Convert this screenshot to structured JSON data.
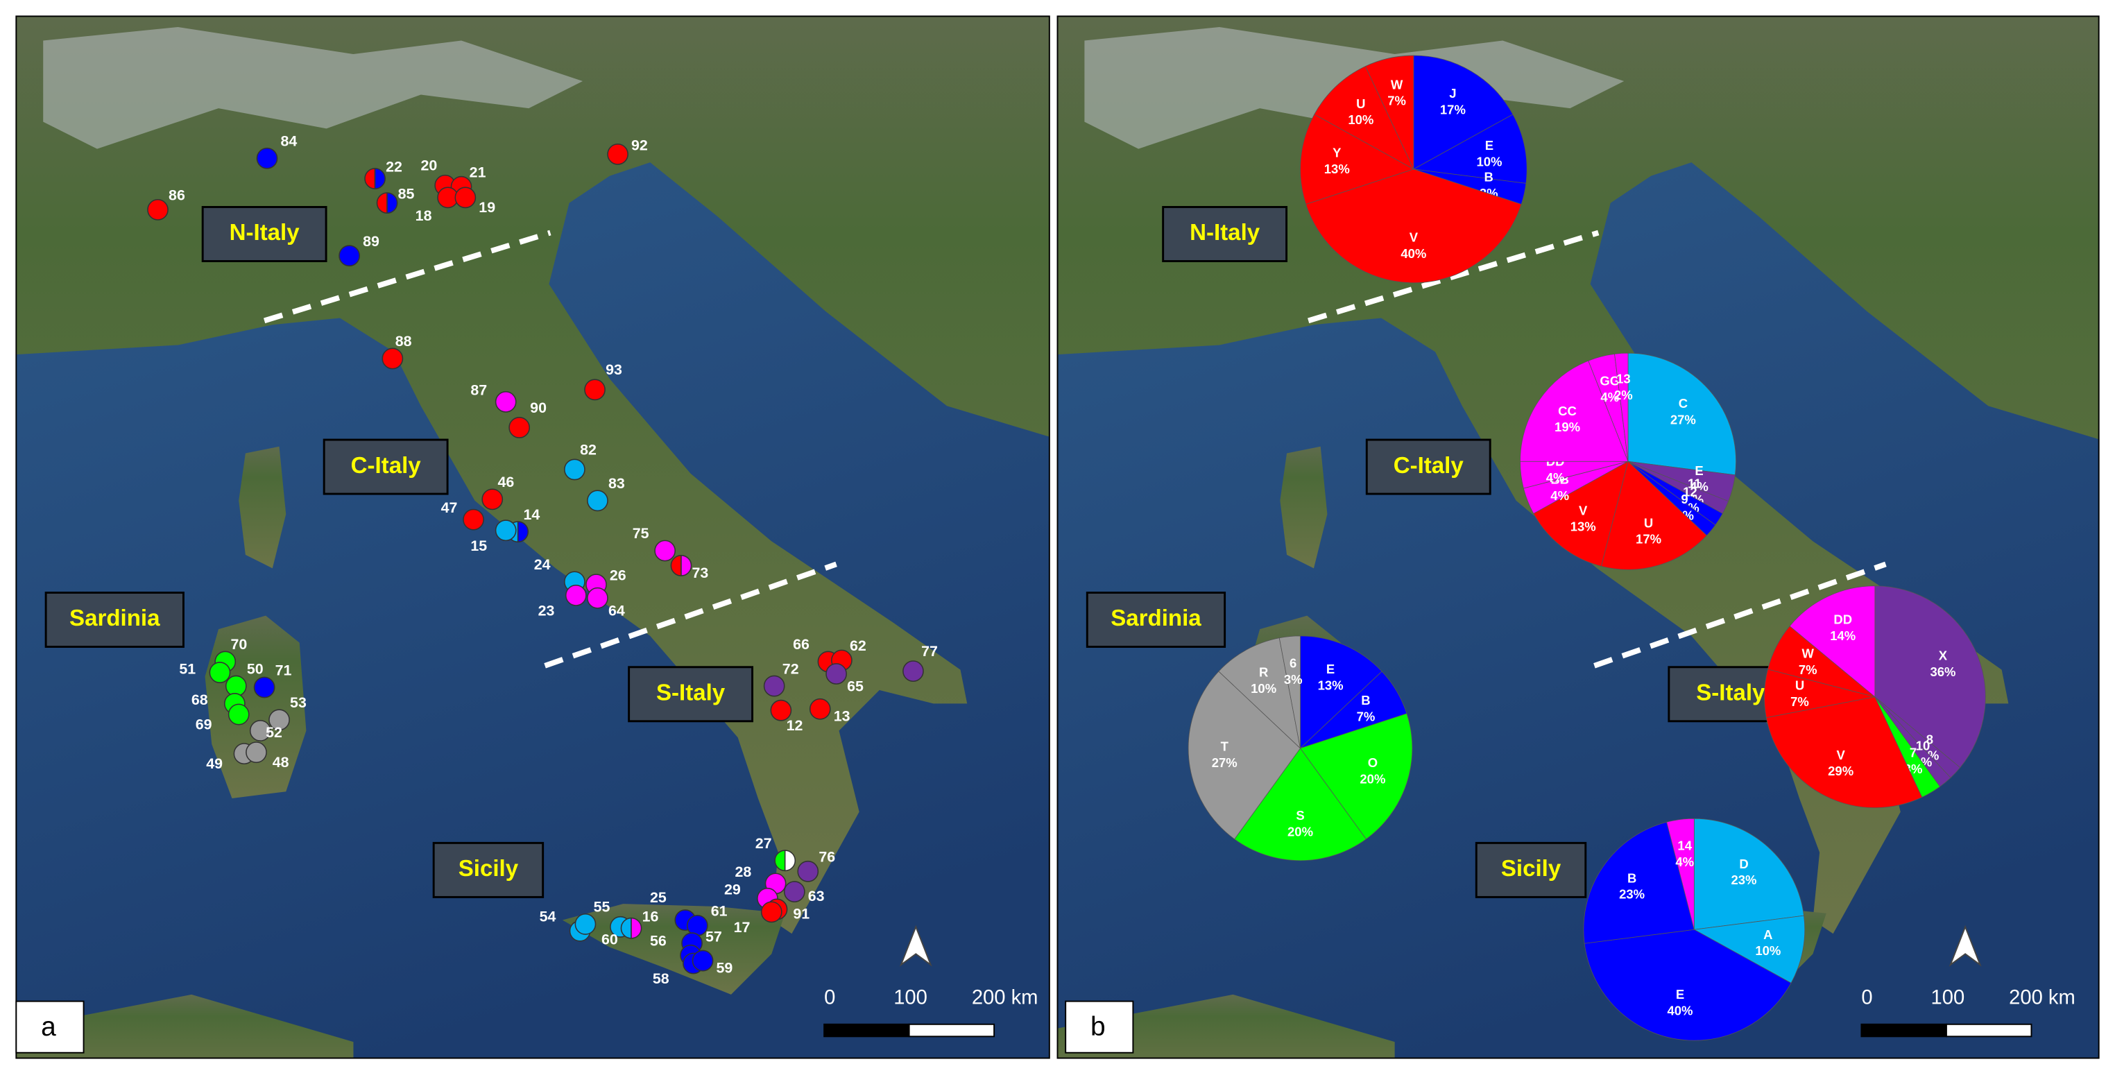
{
  "panel_a": {
    "letter": "a",
    "regions": [
      "N-Italy",
      "C-Italy",
      "Sardinia",
      "S-Italy",
      "Sicily"
    ],
    "scale": [
      "0",
      "100",
      "200 km"
    ],
    "sites": [
      {
        "id": "84",
        "color": "#0000ff"
      },
      {
        "id": "22",
        "color": [
          "#ff0000",
          "#0000ff"
        ]
      },
      {
        "id": "85",
        "color": [
          "#ff0000",
          "#0000ff"
        ]
      },
      {
        "id": "20",
        "color": "#ff0000"
      },
      {
        "id": "21",
        "color": "#ff0000"
      },
      {
        "id": "18",
        "color": "#ff0000"
      },
      {
        "id": "19",
        "color": "#ff0000"
      },
      {
        "id": "92",
        "color": "#ff0000"
      },
      {
        "id": "86",
        "color": "#ff0000"
      },
      {
        "id": "89",
        "color": "#0000ff"
      },
      {
        "id": "88",
        "color": "#ff0000"
      },
      {
        "id": "93",
        "color": "#ff0000"
      },
      {
        "id": "87",
        "color": "#ff00ff"
      },
      {
        "id": "90",
        "color": "#ff0000"
      },
      {
        "id": "82",
        "color": "#00b0f0"
      },
      {
        "id": "83",
        "color": "#00b0f0"
      },
      {
        "id": "46",
        "color": "#ff0000"
      },
      {
        "id": "47",
        "color": "#ff0000"
      },
      {
        "id": "14",
        "color": [
          "#00b0f0",
          "#0000ff"
        ]
      },
      {
        "id": "15",
        "color": "#00b0f0"
      },
      {
        "id": "75",
        "color": "#ff00ff"
      },
      {
        "id": "73",
        "color": [
          "#ff0000",
          "#ff00ff"
        ]
      },
      {
        "id": "24",
        "color": "#00b0f0"
      },
      {
        "id": "26",
        "color": "#ff00ff"
      },
      {
        "id": "23",
        "color": "#ff00ff"
      },
      {
        "id": "64",
        "color": "#ff00ff"
      },
      {
        "id": "70",
        "color": "#00ff00"
      },
      {
        "id": "51",
        "color": "#00ff00"
      },
      {
        "id": "50",
        "color": "#00ff00"
      },
      {
        "id": "71",
        "color": "#0000ff"
      },
      {
        "id": "68",
        "color": "#00ff00"
      },
      {
        "id": "69",
        "color": "#00ff00"
      },
      {
        "id": "53",
        "color": "#999999"
      },
      {
        "id": "52",
        "color": "#999999"
      },
      {
        "id": "49",
        "color": "#999999"
      },
      {
        "id": "48",
        "color": "#999999"
      },
      {
        "id": "66",
        "color": "#ff0000"
      },
      {
        "id": "62",
        "color": "#ff0000"
      },
      {
        "id": "65",
        "color": "#7030a0"
      },
      {
        "id": "77",
        "color": "#7030a0"
      },
      {
        "id": "72",
        "color": "#7030a0"
      },
      {
        "id": "12",
        "color": "#ff0000"
      },
      {
        "id": "13",
        "color": "#ff0000"
      },
      {
        "id": "27",
        "color": [
          "#00ff00",
          "#ffffff"
        ]
      },
      {
        "id": "76",
        "color": "#7030a0"
      },
      {
        "id": "28",
        "color": "#ff00ff"
      },
      {
        "id": "63",
        "color": "#7030a0"
      },
      {
        "id": "29",
        "color": "#ff00ff"
      },
      {
        "id": "91",
        "color": "#ff0000"
      },
      {
        "id": "17",
        "color": "#ff0000"
      },
      {
        "id": "25",
        "color": "#0000ff"
      },
      {
        "id": "61",
        "color": "#0000ff"
      },
      {
        "id": "57",
        "color": "#0000ff"
      },
      {
        "id": "56",
        "color": "#0000ff"
      },
      {
        "id": "58",
        "color": "#0000ff"
      },
      {
        "id": "59",
        "color": "#0000ff"
      },
      {
        "id": "54",
        "color": "#00b0f0"
      },
      {
        "id": "55",
        "color": "#00b0f0"
      },
      {
        "id": "60",
        "color": "#00b0f0"
      },
      {
        "id": "16",
        "color": [
          "#00b0f0",
          "#ff00ff"
        ]
      }
    ]
  },
  "panel_b": {
    "letter": "b",
    "scale": [
      "0",
      "100",
      "200 km"
    ],
    "pies": [
      {
        "region": "N-Italy",
        "slices": [
          {
            "label": "J",
            "value": 17,
            "value_label": "17%",
            "color": "#0000ff"
          },
          {
            "label": "E",
            "value": 10,
            "value_label": "10%",
            "color": "#0000ff"
          },
          {
            "label": "B",
            "value": 3,
            "value_label": "3%",
            "color": "#0000ff"
          },
          {
            "label": "V",
            "value": 40,
            "value_label": "40%",
            "color": "#ff0000"
          },
          {
            "label": "Y",
            "value": 13,
            "value_label": "13%",
            "color": "#ff0000"
          },
          {
            "label": "U",
            "value": 10,
            "value_label": "10%",
            "color": "#ff0000"
          },
          {
            "label": "W",
            "value": 7,
            "value_label": "7%",
            "color": "#ff0000"
          }
        ]
      },
      {
        "region": "C-Italy",
        "slices": [
          {
            "label": "C",
            "value": 27,
            "value_label": "27%",
            "color": "#00b0f0"
          },
          {
            "label": "E",
            "value": 4,
            "value_label": "4%",
            "color": "#7030a0"
          },
          {
            "label": "11",
            "value": 2,
            "value_label": "2%",
            "color": "#7030a0"
          },
          {
            "label": "12",
            "value": 2,
            "value_label": "2%",
            "color": "#0000ff"
          },
          {
            "label": "9",
            "value": 2,
            "value_label": "2%",
            "color": "#0000ff"
          },
          {
            "label": "U",
            "value": 17,
            "value_label": "17%",
            "color": "#ff0000"
          },
          {
            "label": "V",
            "value": 13,
            "value_label": "13%",
            "color": "#ff0000"
          },
          {
            "label": "BB",
            "value": 4,
            "value_label": "4%",
            "color": "#ff00ff"
          },
          {
            "label": "DD",
            "value": 4,
            "value_label": "4%",
            "color": "#ff00ff"
          },
          {
            "label": "CC",
            "value": 19,
            "value_label": "19%",
            "color": "#ff00ff"
          },
          {
            "label": "GG",
            "value": 4,
            "value_label": "4%",
            "color": "#ff00ff"
          },
          {
            "label": "13",
            "value": 2,
            "value_label": "2%",
            "color": "#ff00ff"
          }
        ]
      },
      {
        "region": "Sardinia",
        "slices": [
          {
            "label": "E",
            "value": 13,
            "value_label": "13%",
            "color": "#0000ff"
          },
          {
            "label": "B",
            "value": 7,
            "value_label": "7%",
            "color": "#0000ff"
          },
          {
            "label": "O",
            "value": 20,
            "value_label": "20%",
            "color": "#00ff00"
          },
          {
            "label": "S",
            "value": 20,
            "value_label": "20%",
            "color": "#00ff00"
          },
          {
            "label": "T",
            "value": 27,
            "value_label": "27%",
            "color": "#999999"
          },
          {
            "label": "R",
            "value": 10,
            "value_label": "10%",
            "color": "#999999"
          },
          {
            "label": "6",
            "value": 3,
            "value_label": "3%",
            "color": "#999999"
          }
        ]
      },
      {
        "region": "S-Italy",
        "slices": [
          {
            "label": "X",
            "value": 36,
            "value_label": "36%",
            "color": "#7030a0"
          },
          {
            "label": "8",
            "value": 2,
            "value_label": "2%",
            "color": "#7030a0"
          },
          {
            "label": "10",
            "value": 2,
            "value_label": "2%",
            "color": "#7030a0"
          },
          {
            "label": "7",
            "value": 3,
            "value_label": "3%",
            "color": "#00ff00"
          },
          {
            "label": "V",
            "value": 29,
            "value_label": "29%",
            "color": "#ff0000"
          },
          {
            "label": "U",
            "value": 7,
            "value_label": "7%",
            "color": "#ff0000"
          },
          {
            "label": "W",
            "value": 7,
            "value_label": "7%",
            "color": "#ff0000"
          },
          {
            "label": "DD",
            "value": 14,
            "value_label": "14%",
            "color": "#ff00ff"
          }
        ]
      },
      {
        "region": "Sicily",
        "slices": [
          {
            "label": "D",
            "value": 23,
            "value_label": "23%",
            "color": "#00b0f0"
          },
          {
            "label": "A",
            "value": 10,
            "value_label": "10%",
            "color": "#00b0f0"
          },
          {
            "label": "E",
            "value": 40,
            "value_label": "40%",
            "color": "#0000ff"
          },
          {
            "label": "B",
            "value": 23,
            "value_label": "23%",
            "color": "#0000ff"
          },
          {
            "label": "14",
            "value": 4,
            "value_label": "4%",
            "color": "#ff00ff"
          }
        ]
      }
    ]
  }
}
